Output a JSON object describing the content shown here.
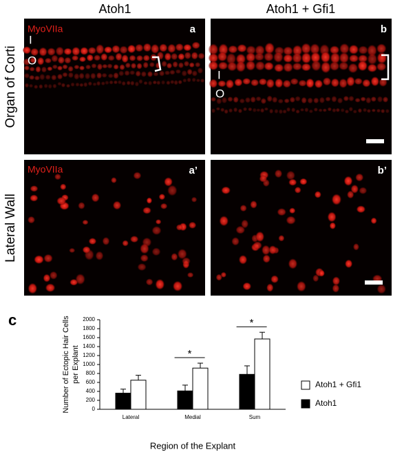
{
  "columns": [
    "Atoh1",
    "Atoh1 + Gfi1"
  ],
  "rows": [
    "Organ of Corti",
    "Lateral Wall"
  ],
  "panels": [
    {
      "label": "a",
      "stain": "MyoVIIa",
      "markers": [
        "I",
        "O"
      ]
    },
    {
      "label": "b",
      "markers": [
        "I",
        "O"
      ]
    },
    {
      "label": "a’",
      "stain": "MyoVIIa"
    },
    {
      "label": "b’"
    }
  ],
  "chart_label": "c",
  "chart_data": {
    "type": "bar",
    "x_label": "Region of the Explant",
    "y_label": [
      "Number of Ectopic Hair Cells",
      "per Explant"
    ],
    "categories": [
      "Lateral",
      "Medial",
      "Sum"
    ],
    "series": [
      {
        "name": "Atoh1",
        "color": "#000000",
        "values": [
          360,
          410,
          780
        ],
        "errors": [
          90,
          130,
          190
        ]
      },
      {
        "name": "Atoh1 + Gfi1",
        "color": "#ffffff",
        "values": [
          650,
          920,
          1570
        ],
        "errors": [
          110,
          110,
          150
        ]
      }
    ],
    "significant": [
      false,
      true,
      true
    ],
    "significance_label": "*",
    "ylim": [
      0,
      2000
    ],
    "yticks": [
      0,
      200,
      400,
      600,
      800,
      1000,
      1200,
      1400,
      1600,
      1800,
      2000
    ]
  }
}
